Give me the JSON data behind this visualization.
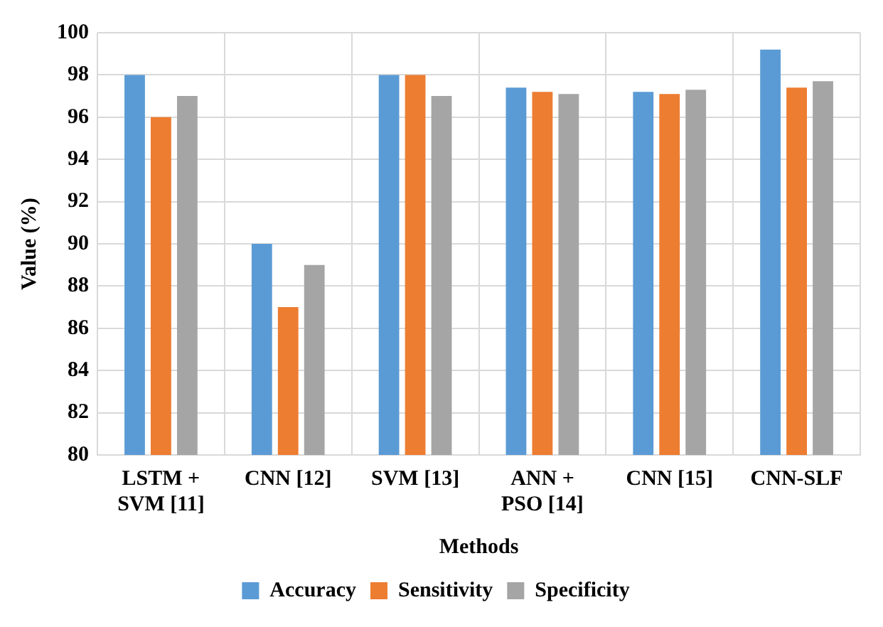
{
  "chart_data": {
    "type": "bar",
    "xlabel": "Methods",
    "ylabel": "Value (%)",
    "categories": [
      "LSTM + SVM [11]",
      "CNN [12]",
      "SVM [13]",
      "ANN + PSO [14]",
      "CNN [15]",
      "CNN-SLF"
    ],
    "series": [
      {
        "name": "Accuracy",
        "color": "#5b9bd5",
        "values": [
          98,
          90,
          98,
          97.4,
          97.2,
          99.2
        ]
      },
      {
        "name": "Sensitivity",
        "color": "#ed7d31",
        "values": [
          96,
          87,
          98,
          97.2,
          97.1,
          97.4
        ]
      },
      {
        "name": "Specificity",
        "color": "#a5a5a5",
        "values": [
          97,
          89,
          97,
          97.1,
          97.3,
          97.7
        ]
      }
    ],
    "ylim": [
      80,
      100
    ],
    "yticks": [
      80,
      82,
      84,
      86,
      88,
      90,
      92,
      94,
      96,
      98,
      100
    ],
    "grid": true,
    "legend": "bottom"
  }
}
